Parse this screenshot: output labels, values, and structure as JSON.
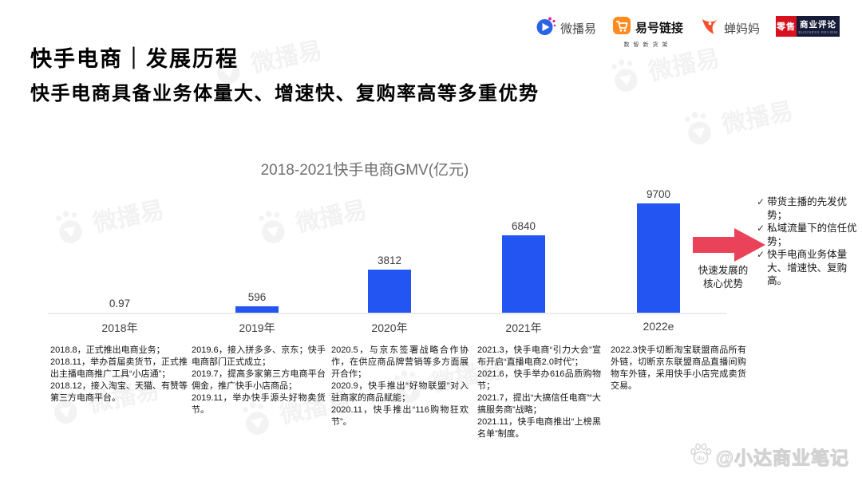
{
  "header": {
    "title": "快手电商｜发展历程",
    "subtitle": "快手电商具备业务体量大、增速快、复购率高等多重优势"
  },
  "logos": {
    "weiboyi": {
      "label": "微播易"
    },
    "yihao": {
      "label": "易号链接",
      "tagline": "数智新货架"
    },
    "chanmama": {
      "label": "蝉妈妈"
    },
    "lingshou": {
      "label": "零售",
      "label2": "商业评论",
      "tagline": "BUSINESS REVIEW"
    }
  },
  "chart_data": {
    "type": "bar",
    "title": "2018-2021快手电商GMV(亿元)",
    "categories": [
      "2018年",
      "2019年",
      "2020年",
      "2021年",
      "2022e"
    ],
    "values": [
      0.97,
      596,
      3812,
      6840,
      9700
    ],
    "value_labels": [
      "0.97",
      "596",
      "3812",
      "6840",
      "9700"
    ],
    "xlabel": "",
    "ylabel": "GMV(亿元)",
    "ylim": [
      0,
      9700
    ],
    "bar_color": "#2355f2",
    "axis_line_color": "#ececec",
    "grid": false,
    "legend": false
  },
  "annotation": {
    "arrow_color": "#ea4359",
    "arrow_label_line1": "快速发展的",
    "arrow_label_line2": "核心优势",
    "check_mark": "✓",
    "advantages": [
      "带货主播的先发优势；",
      "私域流量下的信任优势；",
      "快手电商业务体量大、增速快、复购高。"
    ]
  },
  "timeline": [
    "2018.8，正式推出电商业务；\n2018.11，举办首届卖货节，正式推出主播电商推广工具“小店通”；\n2018.12，接入淘宝、天猫、有赞等第三方电商平台。",
    "2019.6，接入拼多多、京东；快手电商部门正式成立；\n2019.7，提高多家第三方电商平台佣金，推广快手小店商品；\n2019.11，举办快手源头好物卖货节。",
    "2020.5，与京东签署战略合作协作，在供应商品牌营销等多方面展开合作；\n2020.9，快手推出“好物联盟”对入驻商家的商品赋能；\n2020.11，快手推出“116购物狂欢节”。",
    "2021.3，快手电商“引力大会”宣布开启“直播电商2.0时代”；\n2021.6，快手举办616品质购物节；\n2021.7，提出“大搞信任电商”“大搞服务商”战略；\n2021.11，快手电商推出“上榜黑名单”制度。",
    "2022.3快手切断淘宝联盟商品所有外链，切断京东联盟商品直播间购物车外链，采用快手小店完成卖货交易。"
  ],
  "credit": {
    "handle": "@小达商业笔记",
    "paw_text": "du"
  },
  "watermark_text": "微播易"
}
